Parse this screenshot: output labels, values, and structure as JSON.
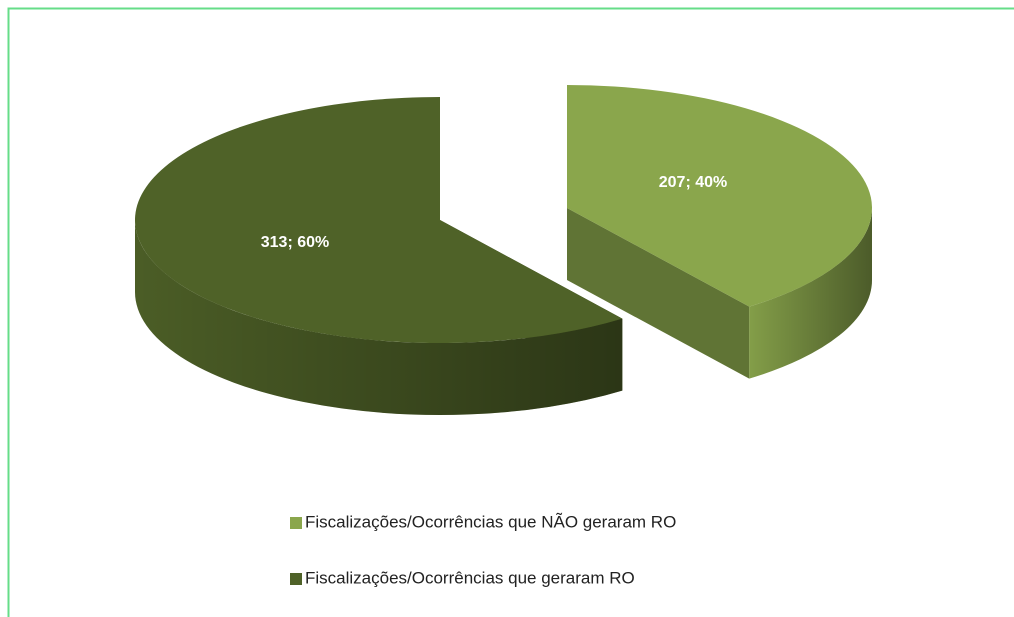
{
  "chart_data": {
    "type": "pie",
    "categories": [
      "Fiscalizações/Ocorrências que NÃO geraram RO",
      "Fiscalizações/Ocorrências que geraram RO"
    ],
    "values": [
      207,
      313
    ],
    "value_labels": [
      "207; 40%",
      "313; 60%"
    ],
    "colors": [
      "#8aa64c",
      "#4f6228"
    ],
    "legend": "bottom"
  }
}
